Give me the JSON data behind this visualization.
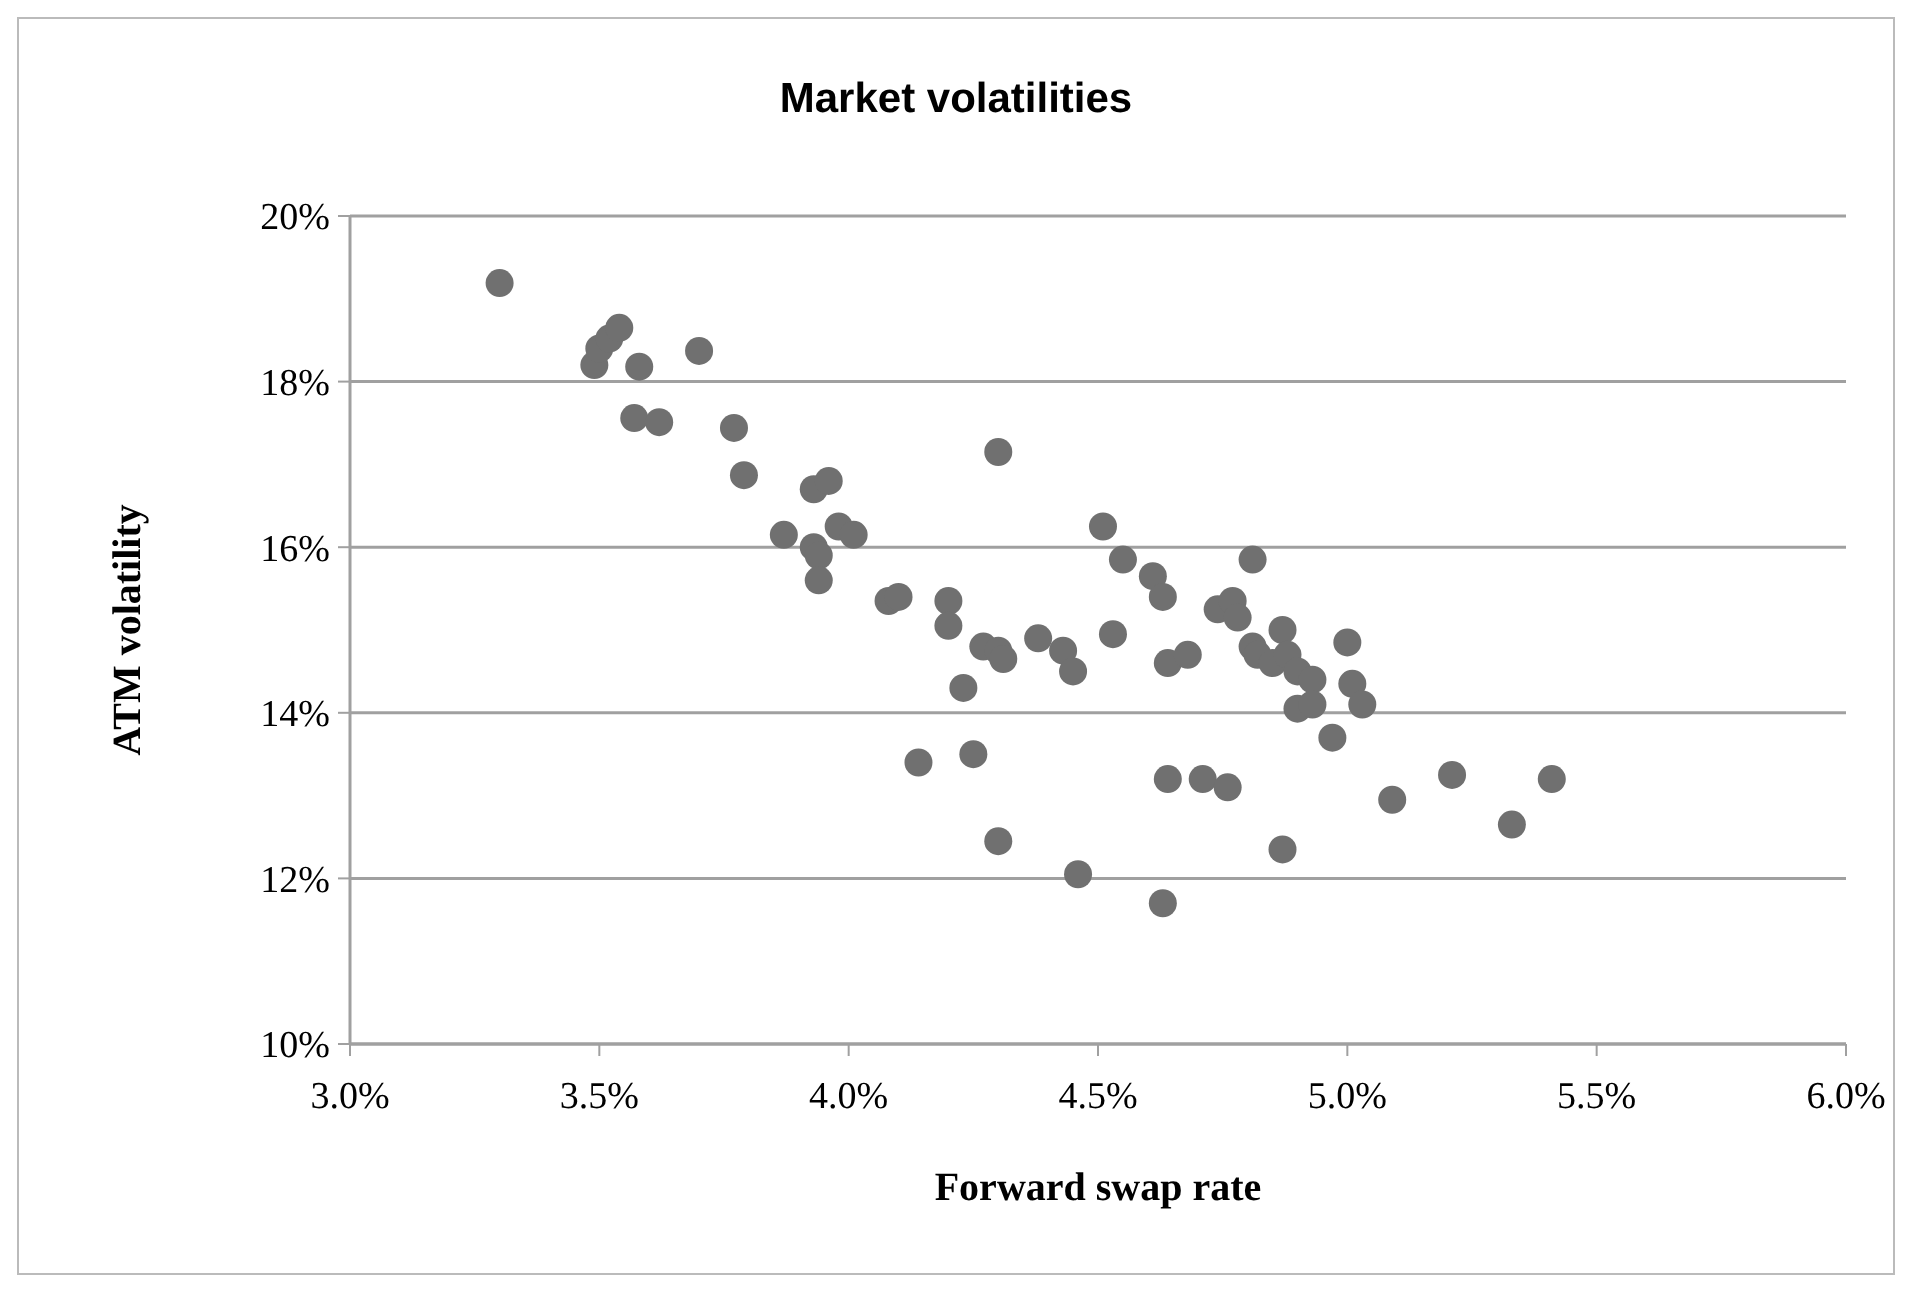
{
  "chart_data": {
    "type": "scatter",
    "title": "Market volatilities",
    "xlabel": "Forward swap rate",
    "ylabel": "ATM volatility",
    "grid": "y",
    "marker": "circle",
    "xlim": [
      3.0,
      6.0
    ],
    "xticks": [
      {
        "value": 3.0,
        "label": "3.0%"
      },
      {
        "value": 3.5,
        "label": "3.5%"
      },
      {
        "value": 4.0,
        "label": "4.0%"
      },
      {
        "value": 4.5,
        "label": "4.5%"
      },
      {
        "value": 5.0,
        "label": "5.0%"
      },
      {
        "value": 5.5,
        "label": "5.5%"
      },
      {
        "value": 6.0,
        "label": "6.0%"
      }
    ],
    "ylim": [
      10,
      20
    ],
    "yticks": [
      {
        "value": 10,
        "label": "10%"
      },
      {
        "value": 12,
        "label": "12%"
      },
      {
        "value": 14,
        "label": "14%"
      },
      {
        "value": 16,
        "label": "16%"
      },
      {
        "value": 18,
        "label": "18%"
      },
      {
        "value": 20,
        "label": "20%"
      }
    ],
    "series": [
      {
        "color": "#707070",
        "x": [
          3.3,
          3.49,
          3.5,
          3.52,
          3.54,
          3.58,
          3.57,
          3.62,
          3.7,
          3.77,
          3.79,
          3.87,
          3.93,
          3.94,
          3.94,
          3.93,
          3.96,
          3.98,
          4.01,
          4.08,
          4.1,
          4.2,
          4.2,
          4.23,
          4.27,
          4.3,
          4.31,
          4.25,
          4.14,
          4.3,
          4.3,
          4.38,
          4.43,
          4.45,
          4.46,
          4.51,
          4.55,
          4.53,
          4.61,
          4.63,
          4.64,
          4.68,
          4.64,
          4.63,
          4.71,
          4.76,
          4.74,
          4.77,
          4.78,
          4.81,
          4.81,
          4.82,
          4.85,
          4.87,
          4.88,
          4.9,
          4.9,
          4.93,
          4.93,
          4.97,
          5.0,
          5.01,
          5.03,
          4.87,
          5.09,
          5.21,
          5.33,
          5.41
        ],
        "values": [
          19.19,
          18.2,
          18.4,
          18.52,
          18.65,
          18.18,
          17.56,
          17.51,
          18.37,
          17.44,
          16.87,
          16.15,
          16.0,
          15.9,
          15.6,
          16.7,
          16.8,
          16.25,
          16.15,
          15.35,
          15.4,
          15.35,
          15.05,
          14.3,
          14.8,
          14.75,
          14.65,
          13.5,
          13.4,
          12.45,
          17.15,
          14.9,
          14.75,
          14.5,
          12.05,
          16.25,
          15.85,
          14.95,
          15.65,
          15.4,
          14.6,
          14.7,
          13.2,
          11.7,
          13.2,
          13.1,
          15.25,
          15.35,
          15.15,
          15.85,
          14.8,
          14.7,
          14.6,
          15.0,
          14.7,
          14.5,
          14.05,
          14.4,
          14.1,
          13.7,
          14.85,
          14.35,
          14.1,
          12.35,
          12.95,
          13.25,
          12.65,
          13.2
        ]
      }
    ]
  }
}
